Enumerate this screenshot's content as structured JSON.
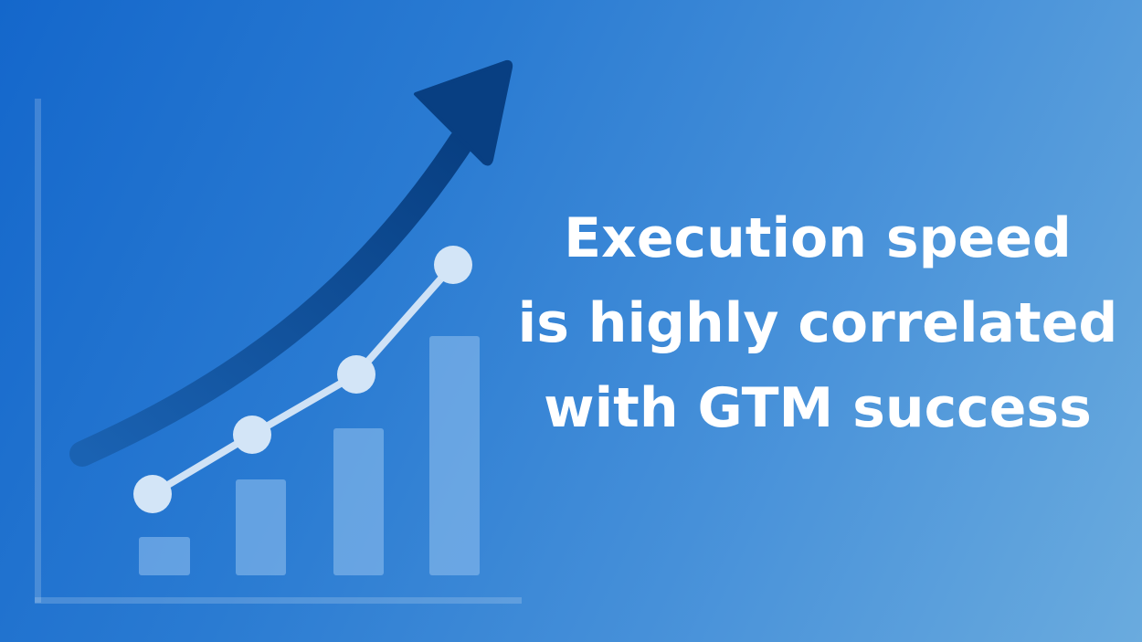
{
  "headline": {
    "lines": [
      "Execution speed",
      "is highly correlated",
      "with GTM success"
    ]
  },
  "colors": {
    "background_start": "#1467cb",
    "background_end": "#6aabde",
    "arrow": "#0d4c96",
    "line_and_points": "#d3e5f7",
    "bars": "#6aa6e0",
    "text": "#ffffff"
  },
  "icons": [
    "trend-arrow-icon",
    "growth-line-chart-icon",
    "bar-chart-icon"
  ]
}
